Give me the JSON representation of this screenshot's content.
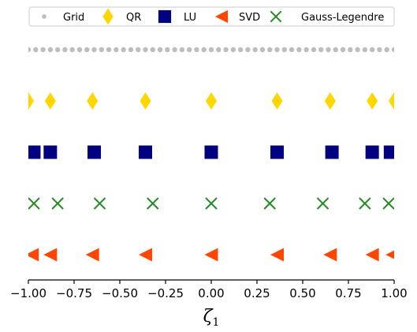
{
  "chart_data": {
    "type": "scatter",
    "title": "",
    "xlabel": "ζ",
    "xlabel_subscript": "1",
    "ylabel": "",
    "xlim": [
      -1.0,
      1.0
    ],
    "xticks": [
      -1.0,
      -0.75,
      -0.5,
      -0.25,
      0.0,
      0.25,
      0.5,
      0.75,
      1.0
    ],
    "xtick_labels": [
      "−1.00",
      "−0.75",
      "−0.50",
      "−0.25",
      "0.00",
      "0.25",
      "0.50",
      "0.75",
      "1.00"
    ],
    "grid": false,
    "legend": "top",
    "series": [
      {
        "name": "Grid",
        "marker": "circle",
        "color": "#bdbdbd",
        "row": 1,
        "x": "uniform grid of 51 points from -1 to 1"
      },
      {
        "name": "QR",
        "marker": "diamond",
        "color": "#ffd700",
        "row": 2,
        "x": [
          -1.0,
          -0.88,
          -0.65,
          -0.36,
          0.0,
          0.36,
          0.65,
          0.88,
          1.0
        ]
      },
      {
        "name": "LU",
        "marker": "square",
        "color": "#000080",
        "row": 3,
        "x": [
          -0.97,
          -0.88,
          -0.64,
          -0.36,
          0.0,
          0.36,
          0.66,
          0.88,
          0.98
        ]
      },
      {
        "name": "SVD",
        "marker": "triangle-left",
        "color": "#ff4500",
        "row": 5,
        "x": [
          -0.98,
          -0.88,
          -0.65,
          -0.36,
          0.0,
          0.36,
          0.65,
          0.88,
          0.99
        ]
      },
      {
        "name": "Gauss-Legendre",
        "marker": "x",
        "color": "#228b22",
        "row": 4,
        "x": [
          -0.97,
          -0.84,
          -0.61,
          -0.32,
          0.0,
          0.32,
          0.61,
          0.84,
          0.97
        ]
      }
    ]
  },
  "legend_order": [
    "Grid",
    "QR",
    "LU",
    "SVD",
    "Gauss-Legendre"
  ]
}
